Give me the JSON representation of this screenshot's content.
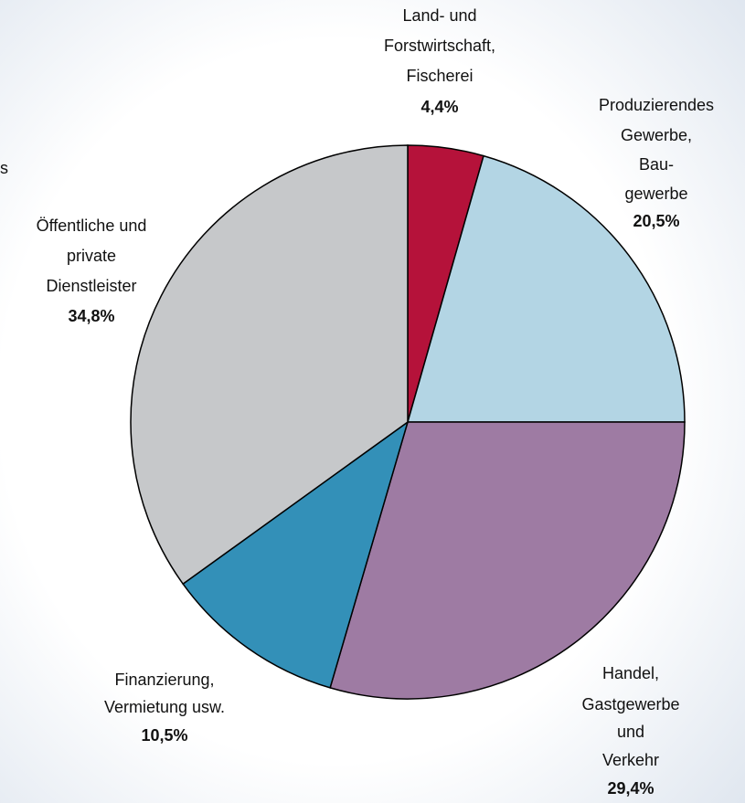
{
  "chart_data": {
    "type": "pie",
    "categories": [
      [
        "Land- und",
        "Forstwirtschaft,",
        "Fischerei"
      ],
      [
        "Produzierendes",
        "Gewerbe,",
        "Bau-",
        "gewerbe"
      ],
      [
        "Handel,",
        "Gastgewerbe",
        "und",
        "Verkehr"
      ],
      [
        "Finanzierung,",
        "Vermietung usw."
      ],
      [
        "Öffentliche und",
        "private",
        "Dienstleister"
      ]
    ],
    "values": [
      4.4,
      20.5,
      29.4,
      10.5,
      34.8
    ],
    "value_labels": [
      "4,4%",
      "20,5%",
      "29,4%",
      "10,5%",
      "34,8%"
    ],
    "colors": [
      "#b5123a",
      "#b3d5e4",
      "#9e7ba3",
      "#3390b8",
      "#c6c8ca"
    ],
    "annotations": [
      "s"
    ]
  }
}
